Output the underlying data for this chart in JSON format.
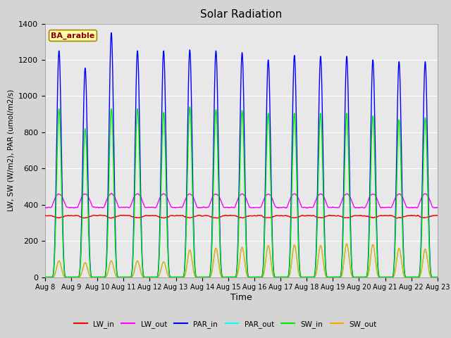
{
  "title": "Solar Radiation",
  "xlabel": "Time",
  "ylabel": "LW, SW (W/m2), PAR (umol/m2/s)",
  "ylim": [
    0,
    1400
  ],
  "yticks": [
    0,
    200,
    400,
    600,
    800,
    1000,
    1200,
    1400
  ],
  "xtick_labels": [
    "Aug 8",
    "Aug 9",
    "Aug 10",
    "Aug 11",
    "Aug 12",
    "Aug 13",
    "Aug 14",
    "Aug 15",
    "Aug 16",
    "Aug 17",
    "Aug 18",
    "Aug 19",
    "Aug 20",
    "Aug 21",
    "Aug 22",
    "Aug 23"
  ],
  "colors": {
    "LW_in": "#ff0000",
    "LW_out": "#ff00ff",
    "PAR_in": "#0000ff",
    "PAR_out": "#00ffff",
    "SW_in": "#00ee00",
    "SW_out": "#ffa500"
  },
  "annotation_text": "BA_arable",
  "annotation_box_color": "#ffffaa",
  "annotation_border_color": "#aa8800",
  "annotation_text_color": "#880000",
  "fig_facecolor": "#d4d4d4",
  "axes_facecolor": "#e8e8e8",
  "n_days": 15,
  "dt_hours": 0.1,
  "PAR_in_peaks": [
    1250,
    1155,
    1350,
    1250,
    1250,
    1255,
    1250,
    1240,
    1200,
    1225,
    1220,
    1220,
    1200,
    1190,
    1190
  ],
  "SW_in_peaks": [
    930,
    820,
    930,
    930,
    910,
    940,
    925,
    920,
    905,
    905,
    905,
    905,
    890,
    870,
    880
  ],
  "SW_out_peaks": [
    90,
    80,
    90,
    90,
    85,
    150,
    160,
    165,
    175,
    178,
    175,
    185,
    180,
    160,
    155
  ],
  "PAR_out_peaks": [
    90,
    80,
    90,
    90,
    85,
    150,
    160,
    165,
    175,
    178,
    175,
    185,
    180,
    160,
    155
  ],
  "LW_in_base": 340,
  "LW_out_base": 385,
  "LW_out_bump": 75,
  "day_start": 6.0,
  "day_end": 19.5,
  "peak_sharpness": 4.0
}
